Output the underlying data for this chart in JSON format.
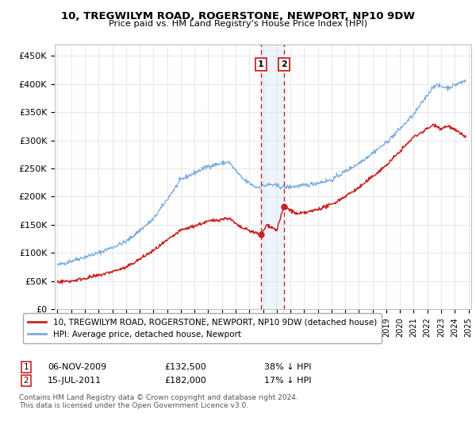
{
  "title": "10, TREGWILYM ROAD, ROGERSTONE, NEWPORT, NP10 9DW",
  "subtitle": "Price paid vs. HM Land Registry's House Price Index (HPI)",
  "legend_line1": "10, TREGWILYM ROAD, ROGERSTONE, NEWPORT, NP10 9DW (detached house)",
  "legend_line2": "HPI: Average price, detached house, Newport",
  "sale1_date": "06-NOV-2009",
  "sale1_price": "£132,500",
  "sale1_pct": "38% ↓ HPI",
  "sale1_year": 2009.85,
  "sale1_val": 132500,
  "sale2_date": "15-JUL-2011",
  "sale2_price": "£182,000",
  "sale2_pct": "17% ↓ HPI",
  "sale2_year": 2011.54,
  "sale2_val": 182000,
  "red_color": "#cc2222",
  "blue_color": "#7aaadd",
  "marker_box_color": "#cc2222",
  "shaded_color": "#cce0f5",
  "footer": "Contains HM Land Registry data © Crown copyright and database right 2024.\nThis data is licensed under the Open Government Licence v3.0.",
  "ylim": [
    0,
    470000
  ],
  "xlim": [
    1994.8,
    2025.2
  ],
  "yticks": [
    0,
    50000,
    100000,
    150000,
    200000,
    250000,
    300000,
    350000,
    400000,
    450000
  ],
  "ylabels": [
    "£0",
    "£50K",
    "£100K",
    "£150K",
    "£200K",
    "£250K",
    "£300K",
    "£350K",
    "£400K",
    "£450K"
  ]
}
